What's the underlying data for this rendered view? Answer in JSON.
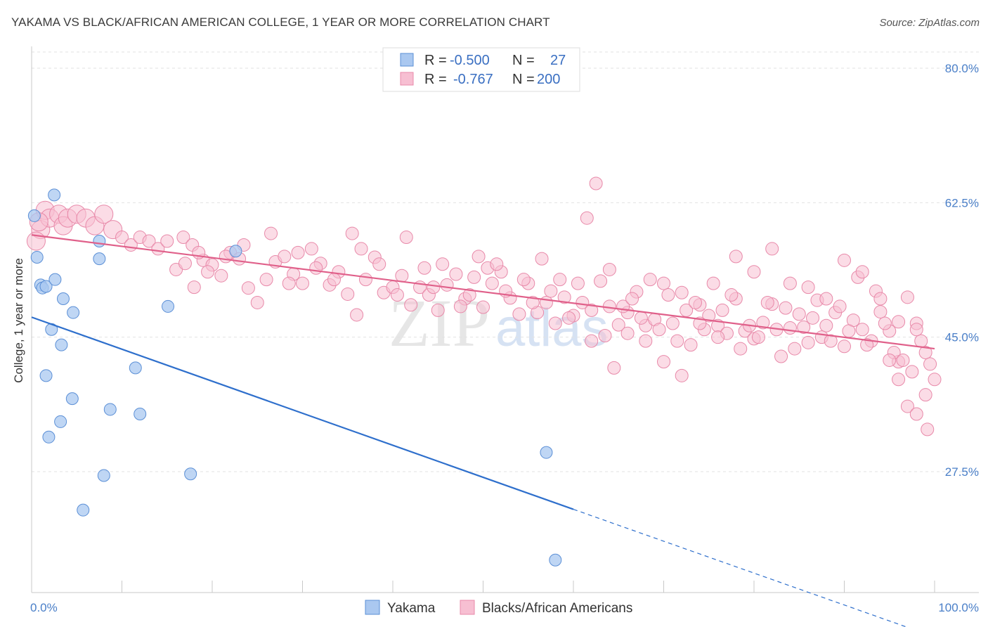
{
  "title": "YAKAMA VS BLACK/AFRICAN AMERICAN COLLEGE, 1 YEAR OR MORE CORRELATION CHART",
  "source": "Source: ZipAtlas.com",
  "watermark": {
    "zip": "ZIP",
    "atlas": "atlas"
  },
  "colors": {
    "yakama_fill": "#aac8f0",
    "yakama_stroke": "#5b8fd6",
    "yakama_line": "#2e6fcc",
    "black_fill": "#f7bfd2",
    "black_stroke": "#e889a9",
    "black_line": "#e0608a",
    "tick_label": "#4a7fc8",
    "grid": "#e2e2e2"
  },
  "legend": {
    "rows": [
      {
        "r_label": "R =",
        "r_value": "-0.500",
        "n_label": "N =",
        "n_value": "27"
      },
      {
        "r_label": "R =",
        "r_value": "-0.767",
        "n_label": "N =",
        "n_value": "200"
      }
    ]
  },
  "chart_data": {
    "type": "scatter",
    "title": "YAKAMA VS BLACK/AFRICAN AMERICAN COLLEGE, 1 YEAR OR MORE CORRELATION CHART",
    "xlabel": "",
    "ylabel": "College, 1 year or more",
    "xlim": [
      0,
      100
    ],
    "ylim": [
      10,
      85
    ],
    "x_tick_labels": [
      "0.0%",
      "100.0%"
    ],
    "y_ticks": [
      27.5,
      45.0,
      62.5,
      80.0
    ],
    "y_tick_labels": [
      "27.5%",
      "45.0%",
      "62.5%",
      "80.0%"
    ],
    "grid": "horizontal dashed",
    "legend_position": "top-center",
    "series": [
      {
        "name": "Yakama",
        "R": -0.5,
        "N": 27,
        "trend": {
          "x0": 0,
          "y0": 47.6,
          "x1": 60,
          "y1": 22.6,
          "dash_to_x": 100,
          "dash_to_y": 6.0
        },
        "points": [
          [
            0.3,
            60.8
          ],
          [
            0.6,
            55.4
          ],
          [
            1.0,
            51.8
          ],
          [
            1.2,
            51.4
          ],
          [
            1.6,
            51.6
          ],
          [
            2.5,
            63.5
          ],
          [
            2.6,
            52.5
          ],
          [
            3.5,
            50.0
          ],
          [
            2.2,
            46.0
          ],
          [
            3.3,
            44.0
          ],
          [
            4.6,
            48.2
          ],
          [
            1.6,
            40.0
          ],
          [
            4.5,
            37.0
          ],
          [
            3.2,
            34.0
          ],
          [
            1.9,
            32.0
          ],
          [
            7.5,
            57.5
          ],
          [
            7.5,
            55.2
          ],
          [
            8.7,
            35.6
          ],
          [
            8.0,
            27.0
          ],
          [
            11.5,
            41.0
          ],
          [
            12.0,
            35.0
          ],
          [
            15.1,
            49.0
          ],
          [
            17.6,
            27.2
          ],
          [
            22.6,
            56.2
          ],
          [
            57.0,
            30.0
          ],
          [
            58.0,
            16.0
          ],
          [
            5.7,
            22.5
          ]
        ]
      },
      {
        "name": "Blacks/African Americans",
        "R": -0.767,
        "N": 200,
        "trend": {
          "x0": 0,
          "y0": 58.3,
          "x1": 100,
          "y1": 43.5
        },
        "points": [
          [
            1.0,
            59.0
          ],
          [
            1.5,
            61.5
          ],
          [
            2.0,
            60.5
          ],
          [
            3.0,
            61.0
          ],
          [
            3.5,
            59.5
          ],
          [
            4.0,
            60.5
          ],
          [
            5.0,
            61.0
          ],
          [
            6.0,
            60.5
          ],
          [
            7.0,
            59.5
          ],
          [
            8.0,
            61.0
          ],
          [
            9.0,
            59.0
          ],
          [
            10.0,
            58.0
          ],
          [
            11.0,
            57.0
          ],
          [
            12.0,
            58.0
          ],
          [
            13.0,
            57.5
          ],
          [
            14.0,
            56.5
          ],
          [
            15.0,
            57.5
          ],
          [
            0.5,
            57.5
          ],
          [
            0.8,
            60.0
          ],
          [
            16,
            53.8
          ],
          [
            17,
            54.6
          ],
          [
            18,
            51.5
          ],
          [
            19,
            55.0
          ],
          [
            20,
            54.4
          ],
          [
            21,
            53.0
          ],
          [
            22,
            56.0
          ],
          [
            23,
            55.2
          ],
          [
            24,
            51.4
          ],
          [
            25,
            49.5
          ],
          [
            26,
            52.5
          ],
          [
            27,
            54.8
          ],
          [
            28,
            55.5
          ],
          [
            29,
            53.2
          ],
          [
            30,
            52.0
          ],
          [
            31,
            56.5
          ],
          [
            32,
            54.6
          ],
          [
            33,
            51.8
          ],
          [
            34,
            53.5
          ],
          [
            35,
            50.6
          ],
          [
            36,
            47.9
          ],
          [
            37,
            52.5
          ],
          [
            38,
            55.4
          ],
          [
            39,
            50.8
          ],
          [
            40,
            51.5
          ],
          [
            41,
            53.0
          ],
          [
            42,
            49.2
          ],
          [
            43,
            51.5
          ],
          [
            44,
            50.5
          ],
          [
            45,
            48.5
          ],
          [
            46,
            51.8
          ],
          [
            47,
            53.2
          ],
          [
            48,
            50.0
          ],
          [
            49,
            52.8
          ],
          [
            50,
            48.9
          ],
          [
            51,
            52.0
          ],
          [
            52,
            53.5
          ],
          [
            53,
            50.1
          ],
          [
            54,
            48.0
          ],
          [
            55,
            52.0
          ],
          [
            56,
            48.2
          ],
          [
            57,
            49.5
          ],
          [
            58,
            46.8
          ],
          [
            59,
            50.2
          ],
          [
            60,
            47.8
          ],
          [
            61,
            49.5
          ],
          [
            62,
            44.5
          ],
          [
            63,
            52.3
          ],
          [
            64,
            49.0
          ],
          [
            65,
            46.6
          ],
          [
            66,
            48.2
          ],
          [
            67,
            50.9
          ],
          [
            68,
            46.5
          ],
          [
            69,
            47.3
          ],
          [
            70,
            52.0
          ],
          [
            71,
            46.8
          ],
          [
            72,
            50.8
          ],
          [
            73,
            44.0
          ],
          [
            74,
            49.2
          ],
          [
            75,
            47.8
          ],
          [
            76,
            46.5
          ],
          [
            77,
            45.5
          ],
          [
            78,
            50.0
          ],
          [
            79,
            45.8
          ],
          [
            80,
            44.8
          ],
          [
            81,
            46.9
          ],
          [
            82,
            49.3
          ],
          [
            83,
            42.5
          ],
          [
            84,
            46.2
          ],
          [
            85,
            48.0
          ],
          [
            86,
            44.3
          ],
          [
            87,
            49.8
          ],
          [
            88,
            46.5
          ],
          [
            89,
            48.2
          ],
          [
            90,
            43.8
          ],
          [
            91,
            47.2
          ],
          [
            92,
            46.0
          ],
          [
            93,
            44.5
          ],
          [
            94,
            48.3
          ],
          [
            95,
            45.8
          ],
          [
            96,
            41.8
          ],
          [
            97,
            50.2
          ],
          [
            98,
            46.8
          ],
          [
            99,
            43.0
          ],
          [
            100,
            39.5
          ],
          [
            16.8,
            58.0
          ],
          [
            17.8,
            57.0
          ],
          [
            18.5,
            56.0
          ],
          [
            19.5,
            53.5
          ],
          [
            21.5,
            55.5
          ],
          [
            23.5,
            57.0
          ],
          [
            26.5,
            58.5
          ],
          [
            28.5,
            52.0
          ],
          [
            29.5,
            56.0
          ],
          [
            31.5,
            54.0
          ],
          [
            33.5,
            52.5
          ],
          [
            35.5,
            58.5
          ],
          [
            36.5,
            56.5
          ],
          [
            38.5,
            54.5
          ],
          [
            40.5,
            50.5
          ],
          [
            41.5,
            58.0
          ],
          [
            43.5,
            54.0
          ],
          [
            44.5,
            51.5
          ],
          [
            45.5,
            54.5
          ],
          [
            47.5,
            49.0
          ],
          [
            48.5,
            50.5
          ],
          [
            49.5,
            55.5
          ],
          [
            50.5,
            54.0
          ],
          [
            51.5,
            54.5
          ],
          [
            52.5,
            51.0
          ],
          [
            54.5,
            52.5
          ],
          [
            55.5,
            49.5
          ],
          [
            56.5,
            55.2
          ],
          [
            57.5,
            51.0
          ],
          [
            58.5,
            52.5
          ],
          [
            59.5,
            47.5
          ],
          [
            60.5,
            52.0
          ],
          [
            61.5,
            60.5
          ],
          [
            62.5,
            65.0
          ],
          [
            63.5,
            45.2
          ],
          [
            64.5,
            41.0
          ],
          [
            65.5,
            49.0
          ],
          [
            66.5,
            50.0
          ],
          [
            67.5,
            47.5
          ],
          [
            68.5,
            52.5
          ],
          [
            69.5,
            46.0
          ],
          [
            70.5,
            50.5
          ],
          [
            71.5,
            44.5
          ],
          [
            72.5,
            48.5
          ],
          [
            73.5,
            49.5
          ],
          [
            74.5,
            46.0
          ],
          [
            75.5,
            52.0
          ],
          [
            76.5,
            48.5
          ],
          [
            77.5,
            50.5
          ],
          [
            78.5,
            43.5
          ],
          [
            79.5,
            46.5
          ],
          [
            80.5,
            45.0
          ],
          [
            81.5,
            49.5
          ],
          [
            82.5,
            46.0
          ],
          [
            83.5,
            48.8
          ],
          [
            84.5,
            43.5
          ],
          [
            85.5,
            46.3
          ],
          [
            86.5,
            47.5
          ],
          [
            87.5,
            45.0
          ],
          [
            88.5,
            44.5
          ],
          [
            89.5,
            49.0
          ],
          [
            90.5,
            45.8
          ],
          [
            91.5,
            52.8
          ],
          [
            92.5,
            44.0
          ],
          [
            93.5,
            51.0
          ],
          [
            94.5,
            46.8
          ],
          [
            95.5,
            43.0
          ],
          [
            96.5,
            42.0
          ],
          [
            97.5,
            40.5
          ],
          [
            98.5,
            44.5
          ],
          [
            99.0,
            37.5
          ],
          [
            99.5,
            41.5
          ],
          [
            95.0,
            42.0
          ],
          [
            96.0,
            39.5
          ],
          [
            97.0,
            36.0
          ],
          [
            98.0,
            35.0
          ],
          [
            99.2,
            33.0
          ],
          [
            62.0,
            48.5
          ],
          [
            64.0,
            53.8
          ],
          [
            66.0,
            45.5
          ],
          [
            68.0,
            44.5
          ],
          [
            70.0,
            41.8
          ],
          [
            72.0,
            40.0
          ],
          [
            74.0,
            46.8
          ],
          [
            76.0,
            45.0
          ],
          [
            78.0,
            55.5
          ],
          [
            80.0,
            53.5
          ],
          [
            82.0,
            56.5
          ],
          [
            84.0,
            52.0
          ],
          [
            86.0,
            51.5
          ],
          [
            88.0,
            50.0
          ],
          [
            90.0,
            55.0
          ],
          [
            92.0,
            53.5
          ],
          [
            94.0,
            50.0
          ],
          [
            96.0,
            47.0
          ],
          [
            98.0,
            46.0
          ]
        ]
      }
    ]
  },
  "bottom_legend": [
    {
      "label": "Yakama"
    },
    {
      "label": "Blacks/African Americans"
    }
  ]
}
